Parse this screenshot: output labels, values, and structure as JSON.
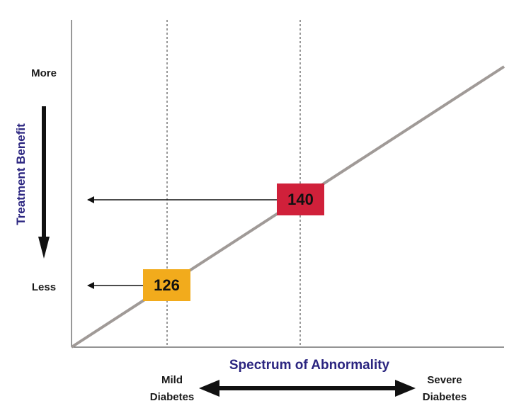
{
  "y_axis": {
    "title": "Treatment Benefit",
    "top_label": "More",
    "bottom_label": "Less"
  },
  "x_axis": {
    "title": "Spectrum of Abnormality",
    "left_label_line1": "Mild",
    "left_label_line2": "Diabetes",
    "right_label_line1": "Severe",
    "right_label_line2": "Diabetes"
  },
  "markers": [
    {
      "label": "140",
      "color": "#d0203a"
    },
    {
      "label": "126",
      "color": "#f2ab1c"
    }
  ],
  "colors": {
    "trend_line": "#a09a97",
    "axis_title": "#2b2580",
    "text": "#1a1a1a"
  }
}
